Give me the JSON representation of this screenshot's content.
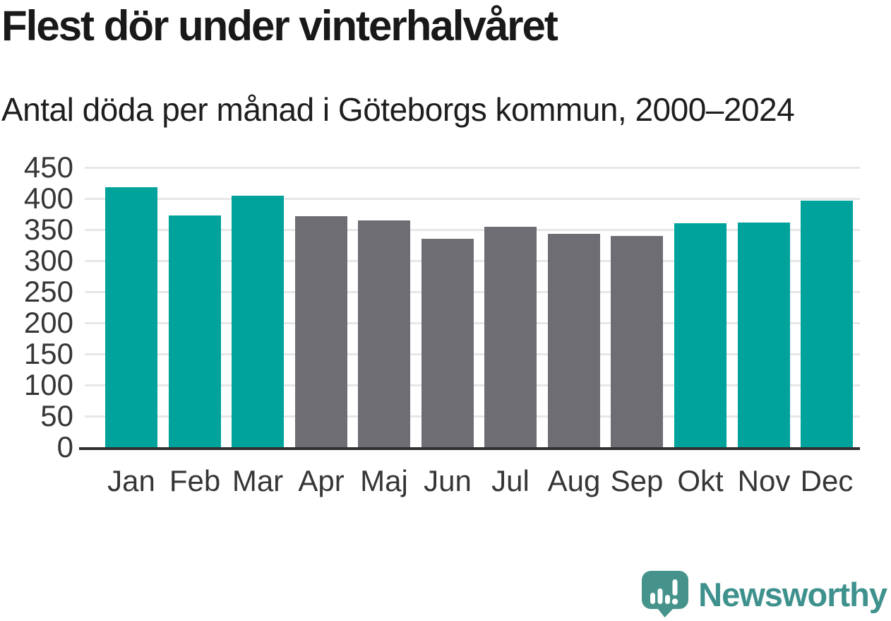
{
  "header": {
    "title": "Flest dör under vinterhalvåret",
    "subtitle": "Antal döda per månad i Göteborgs kommun, 2000–2024"
  },
  "chart_data": {
    "type": "bar",
    "title": "Flest dör under vinterhalvåret",
    "subtitle": "Antal döda per månad i Göteborgs kommun, 2000–2024",
    "categories": [
      "Jan",
      "Feb",
      "Mar",
      "Apr",
      "Maj",
      "Jun",
      "Jul",
      "Aug",
      "Sep",
      "Okt",
      "Nov",
      "Dec"
    ],
    "values": [
      418,
      373,
      404,
      372,
      365,
      335,
      354,
      343,
      340,
      360,
      361,
      397
    ],
    "bar_colors": [
      "#00A39B",
      "#00A39B",
      "#00A39B",
      "#6E6D73",
      "#6E6D73",
      "#6E6D73",
      "#6E6D73",
      "#6E6D73",
      "#6E6D73",
      "#00A39B",
      "#00A39B",
      "#00A39B"
    ],
    "xlabel": "",
    "ylabel": "",
    "ylim": [
      0,
      450
    ],
    "yticks": [
      0,
      50,
      100,
      150,
      200,
      250,
      300,
      350,
      400,
      450
    ],
    "grid": true,
    "legend": false
  },
  "colors": {
    "winter_bar": "#00A39B",
    "summer_bar": "#6E6D73",
    "gridline": "#E7E7E7",
    "axis_line": "#303030",
    "tick_label": "#363636",
    "title_text": "#191919",
    "brand_teal": "#3E918D",
    "logo_bubble": "#46938C"
  },
  "footer": {
    "brand": "Newsworthy",
    "brand_color": "#3E918D"
  }
}
